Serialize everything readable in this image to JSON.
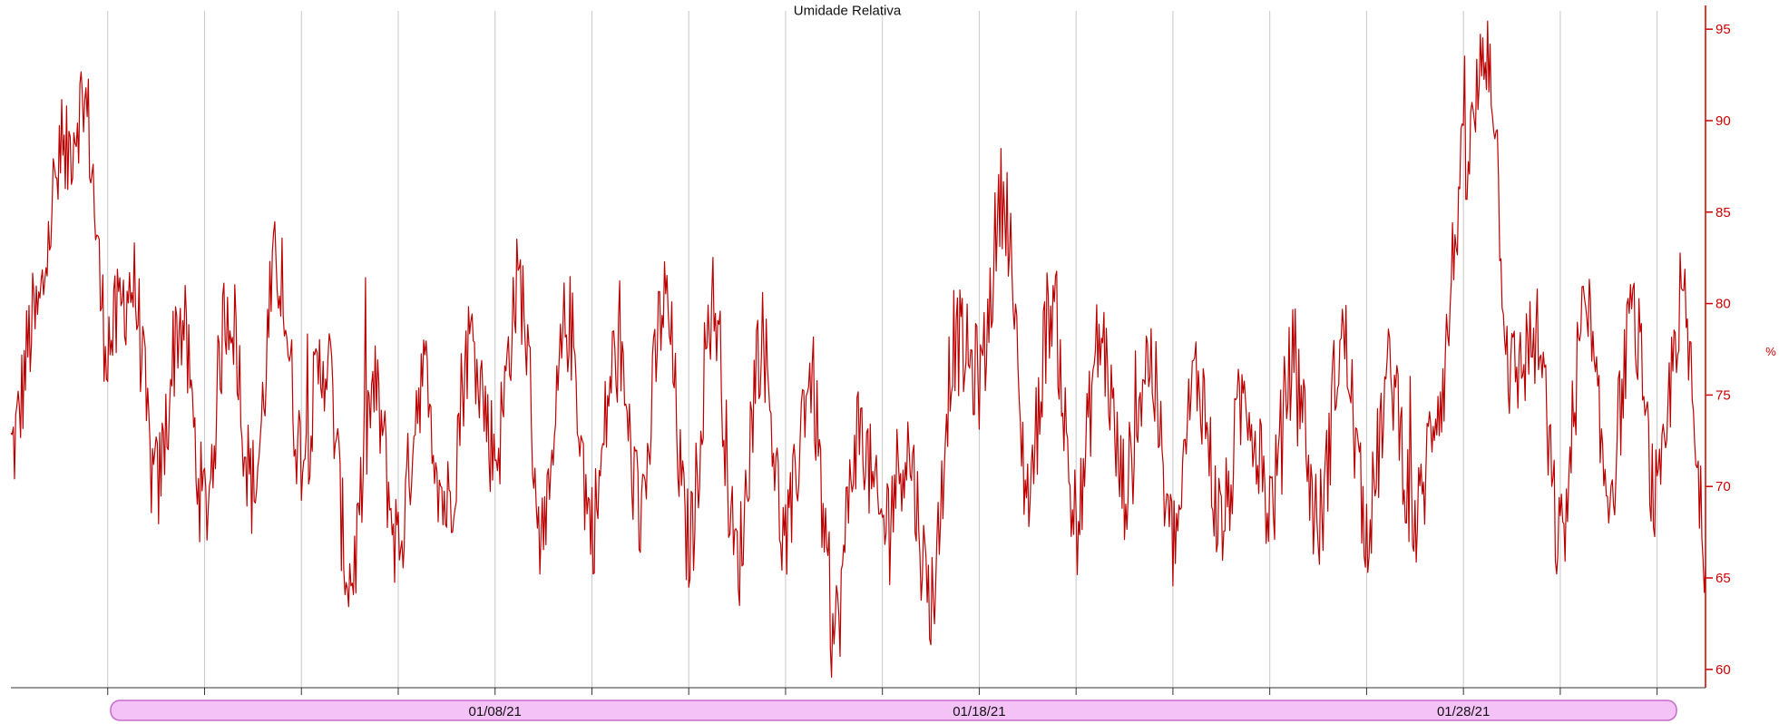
{
  "colors": {
    "series": "#bb0000",
    "axis": "#cc0000",
    "grid": "#c8c8c8",
    "navigator_fill": "#f5c2f7",
    "navigator_stroke": "#c56ccb"
  },
  "chart_data": {
    "type": "line",
    "title": "Umidade Relativa",
    "ylabel": "%",
    "xlabel": "",
    "ylim": [
      59,
      96
    ],
    "xlim": [
      "2020-12-29",
      "2021-02-02"
    ],
    "grid": {
      "x": true,
      "y": false
    },
    "y_axis_side": "right",
    "y_ticks": [
      60,
      65,
      70,
      75,
      80,
      85,
      90,
      95
    ],
    "x_tick_labels": [
      {
        "date": "2021-01-08",
        "label": "01/08/21"
      },
      {
        "date": "2021-01-18",
        "label": "01/18/21"
      },
      {
        "date": "2021-01-28",
        "label": "01/28/21"
      }
    ],
    "series": [
      {
        "name": "",
        "x": [
          "2020-12-29T00:00",
          "2020-12-29T12:00",
          "2020-12-30T00:00",
          "2020-12-30T12:00",
          "2020-12-31T00:00",
          "2020-12-31T12:00",
          "2021-01-01T00:00",
          "2021-01-01T12:00",
          "2021-01-02T00:00",
          "2021-01-02T12:00",
          "2021-01-03T00:00",
          "2021-01-03T12:00",
          "2021-01-04T00:00",
          "2021-01-04T12:00",
          "2021-01-05T00:00",
          "2021-01-05T12:00",
          "2021-01-06T00:00",
          "2021-01-06T12:00",
          "2021-01-07T00:00",
          "2021-01-07T12:00",
          "2021-01-08T00:00",
          "2021-01-08T12:00",
          "2021-01-09T00:00",
          "2021-01-09T12:00",
          "2021-01-10T00:00",
          "2021-01-10T12:00",
          "2021-01-11T00:00",
          "2021-01-11T12:00",
          "2021-01-12T00:00",
          "2021-01-12T12:00",
          "2021-01-13T00:00",
          "2021-01-13T12:00",
          "2021-01-14T00:00",
          "2021-01-14T12:00",
          "2021-01-15T00:00",
          "2021-01-15T12:00",
          "2021-01-16T00:00",
          "2021-01-16T12:00",
          "2021-01-17T00:00",
          "2021-01-17T12:00",
          "2021-01-18T00:00",
          "2021-01-18T12:00",
          "2021-01-19T00:00",
          "2021-01-19T12:00",
          "2021-01-20T00:00",
          "2021-01-20T12:00",
          "2021-01-21T00:00",
          "2021-01-21T12:00",
          "2021-01-22T00:00",
          "2021-01-22T12:00",
          "2021-01-23T00:00",
          "2021-01-23T12:00",
          "2021-01-24T00:00",
          "2021-01-24T12:00",
          "2021-01-25T00:00",
          "2021-01-25T12:00",
          "2021-01-26T00:00",
          "2021-01-26T12:00",
          "2021-01-27T00:00",
          "2021-01-27T12:00",
          "2021-01-28T00:00",
          "2021-01-28T12:00",
          "2021-01-29T00:00",
          "2021-01-29T12:00",
          "2021-01-30T00:00",
          "2021-01-30T12:00",
          "2021-01-31T00:00",
          "2021-01-31T12:00",
          "2021-02-01T00:00",
          "2021-02-01T12:00",
          "2021-02-02T00:00"
        ],
        "values": [
          72,
          79,
          87,
          91,
          78,
          81,
          70,
          79,
          69,
          80,
          70,
          82,
          72,
          77,
          65,
          75,
          67,
          76,
          69,
          78,
          72,
          81,
          67,
          79,
          68,
          77,
          69,
          80,
          67,
          80,
          66,
          78,
          67,
          76,
          62,
          73,
          68,
          72,
          64,
          78,
          76,
          86,
          70,
          80,
          68,
          78,
          70,
          77,
          67,
          76,
          68,
          75,
          69,
          77,
          68,
          78,
          68,
          76,
          68,
          75,
          87,
          94,
          76,
          78,
          67,
          79,
          70,
          79,
          69,
          80,
          67
        ]
      }
    ]
  }
}
